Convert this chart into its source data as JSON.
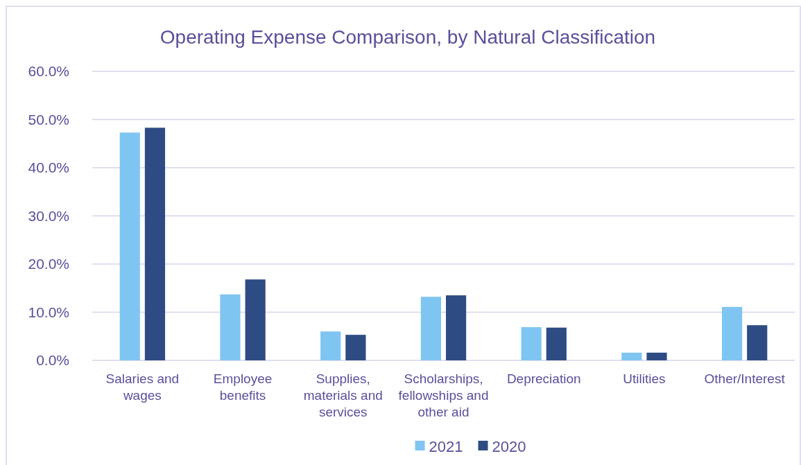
{
  "chart_data": {
    "type": "bar",
    "title": "Operating Expense Comparison, by Natural Classification",
    "categories": [
      "Salaries and wages",
      "Employee benefits",
      "Supplies, materials and services",
      "Scholarships, fellowships and other aid",
      "Depreciation",
      "Utilities",
      "Other/Interest"
    ],
    "series": [
      {
        "name": "2021",
        "color": "#7fc5f2",
        "values": [
          47.3,
          13.7,
          6.0,
          13.2,
          6.9,
          1.6,
          11.1
        ]
      },
      {
        "name": "2020",
        "color": "#2e4b83",
        "values": [
          48.3,
          16.8,
          5.3,
          13.5,
          6.8,
          1.6,
          7.3
        ]
      }
    ],
    "ylim": [
      0,
      60
    ],
    "yticks": [
      {
        "value": 0,
        "label": "0.0%"
      },
      {
        "value": 10,
        "label": "10.0%"
      },
      {
        "value": 20,
        "label": "20.0%"
      },
      {
        "value": 30,
        "label": "30.0%"
      },
      {
        "value": 40,
        "label": "40.0%"
      },
      {
        "value": 50,
        "label": "50.0%"
      },
      {
        "value": 60,
        "label": "60.0%"
      }
    ],
    "grid": "y",
    "legend": "bottom"
  }
}
